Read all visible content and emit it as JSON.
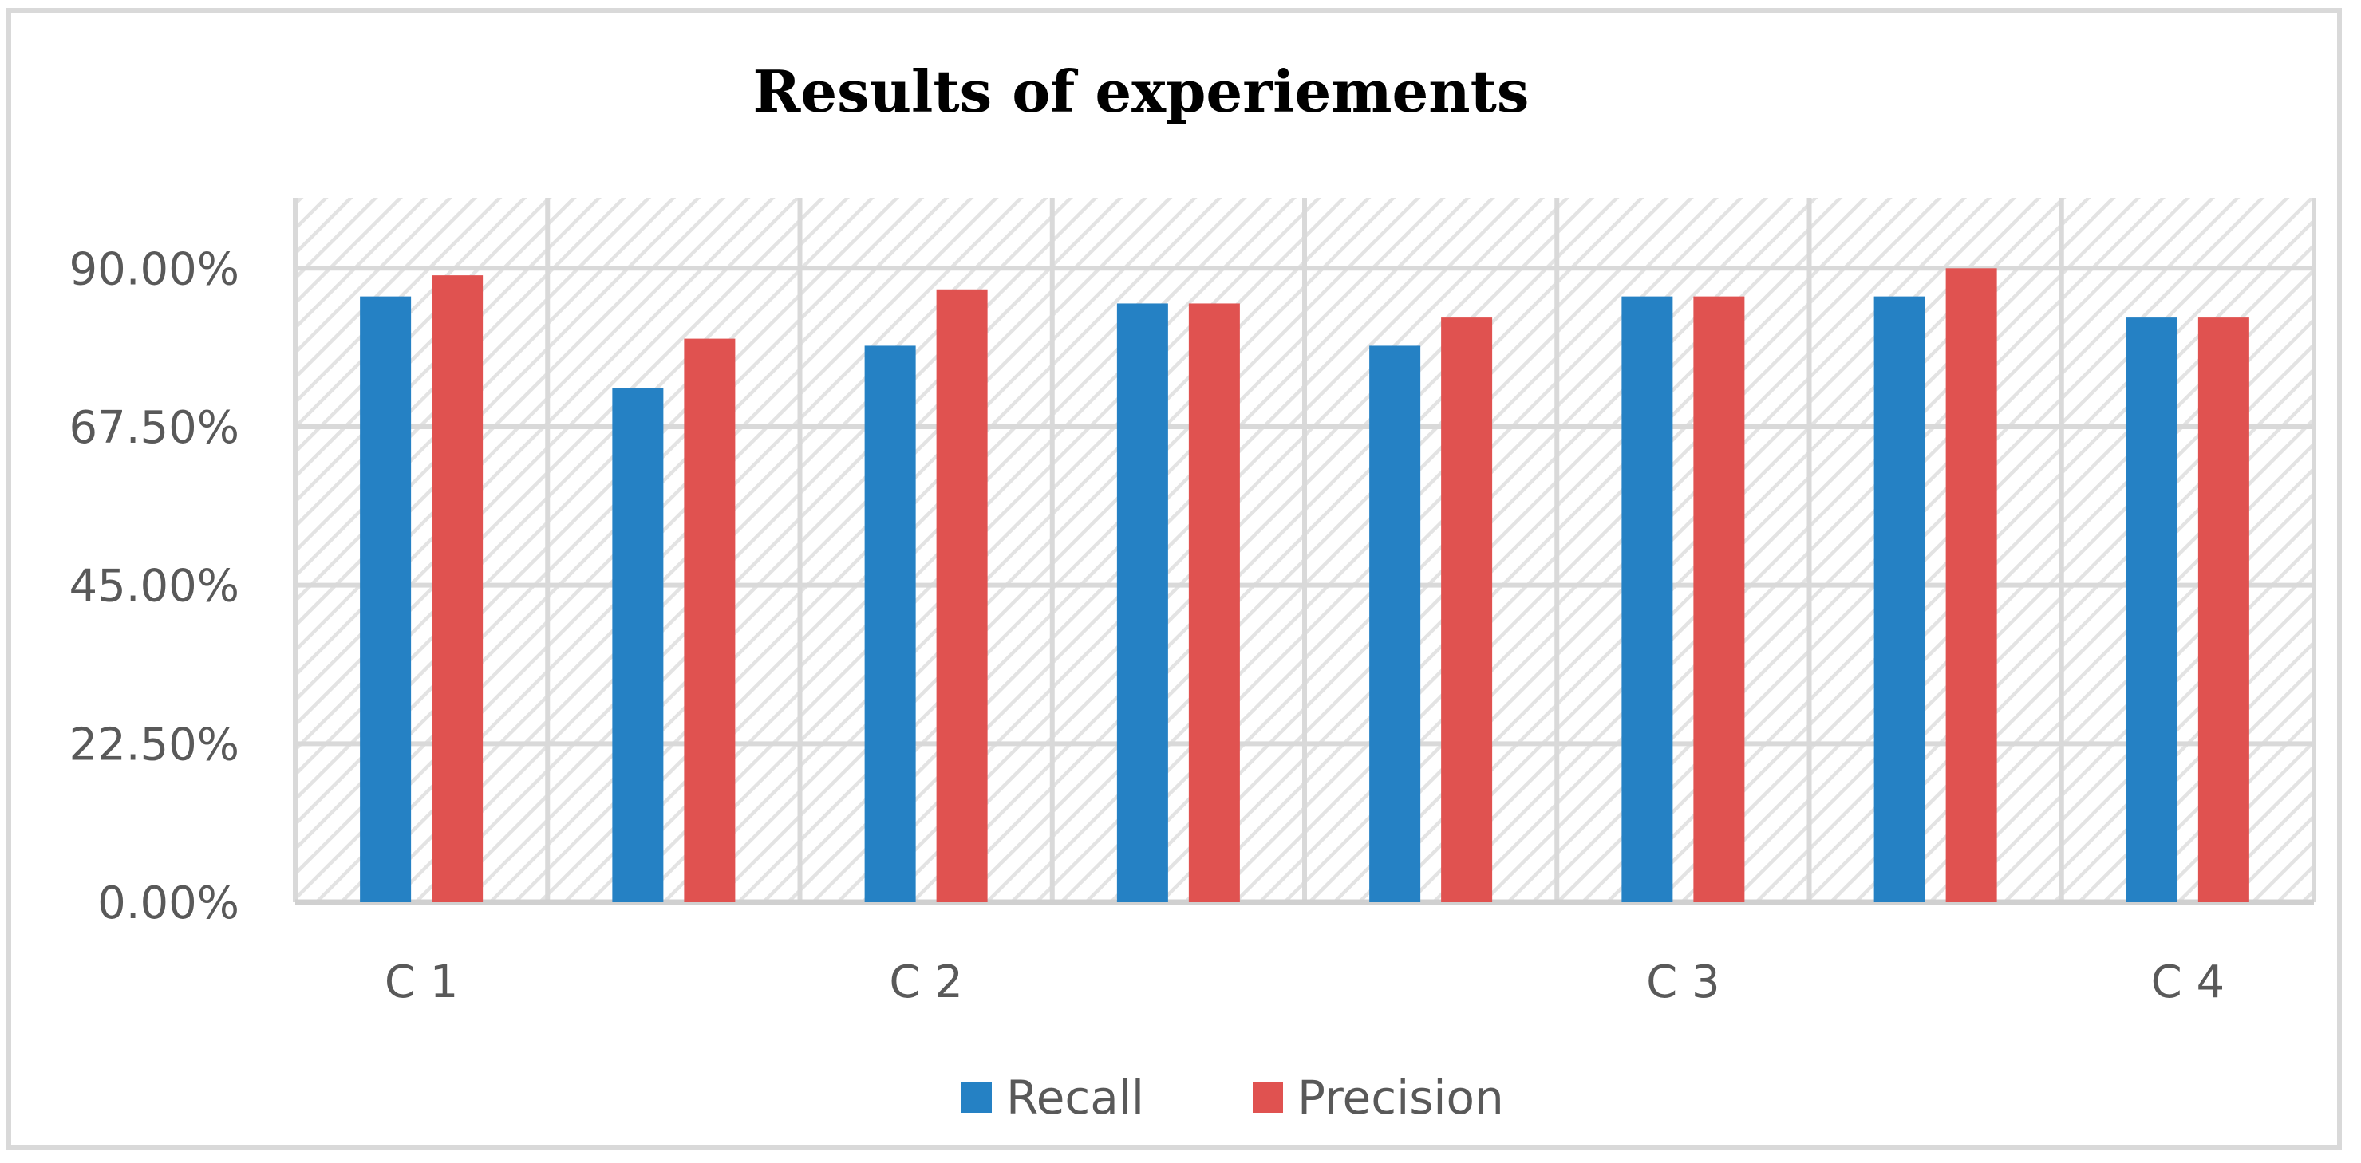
{
  "chart_data": {
    "type": "bar",
    "title": "Results of experiements",
    "xlabel": "",
    "ylabel": "",
    "ylim": [
      0,
      100
    ],
    "y_ticks": [
      0,
      22.5,
      45,
      67.5,
      90
    ],
    "y_tick_labels": [
      "0.00%",
      "22.50%",
      "45.00%",
      "67.50%",
      "90.00%"
    ],
    "categories": [
      "C 1",
      "",
      "C 2",
      "",
      "",
      "C 3",
      "",
      "C 4"
    ],
    "series": [
      {
        "name": "Recall",
        "color": "#2581c4",
        "values": [
          86,
          73,
          79,
          85,
          79,
          86,
          86,
          83
        ]
      },
      {
        "name": "Precision",
        "color": "#e05250",
        "values": [
          89,
          80,
          87,
          85,
          83,
          86,
          90,
          83
        ]
      }
    ],
    "grid": true,
    "legend_position": "bottom"
  }
}
